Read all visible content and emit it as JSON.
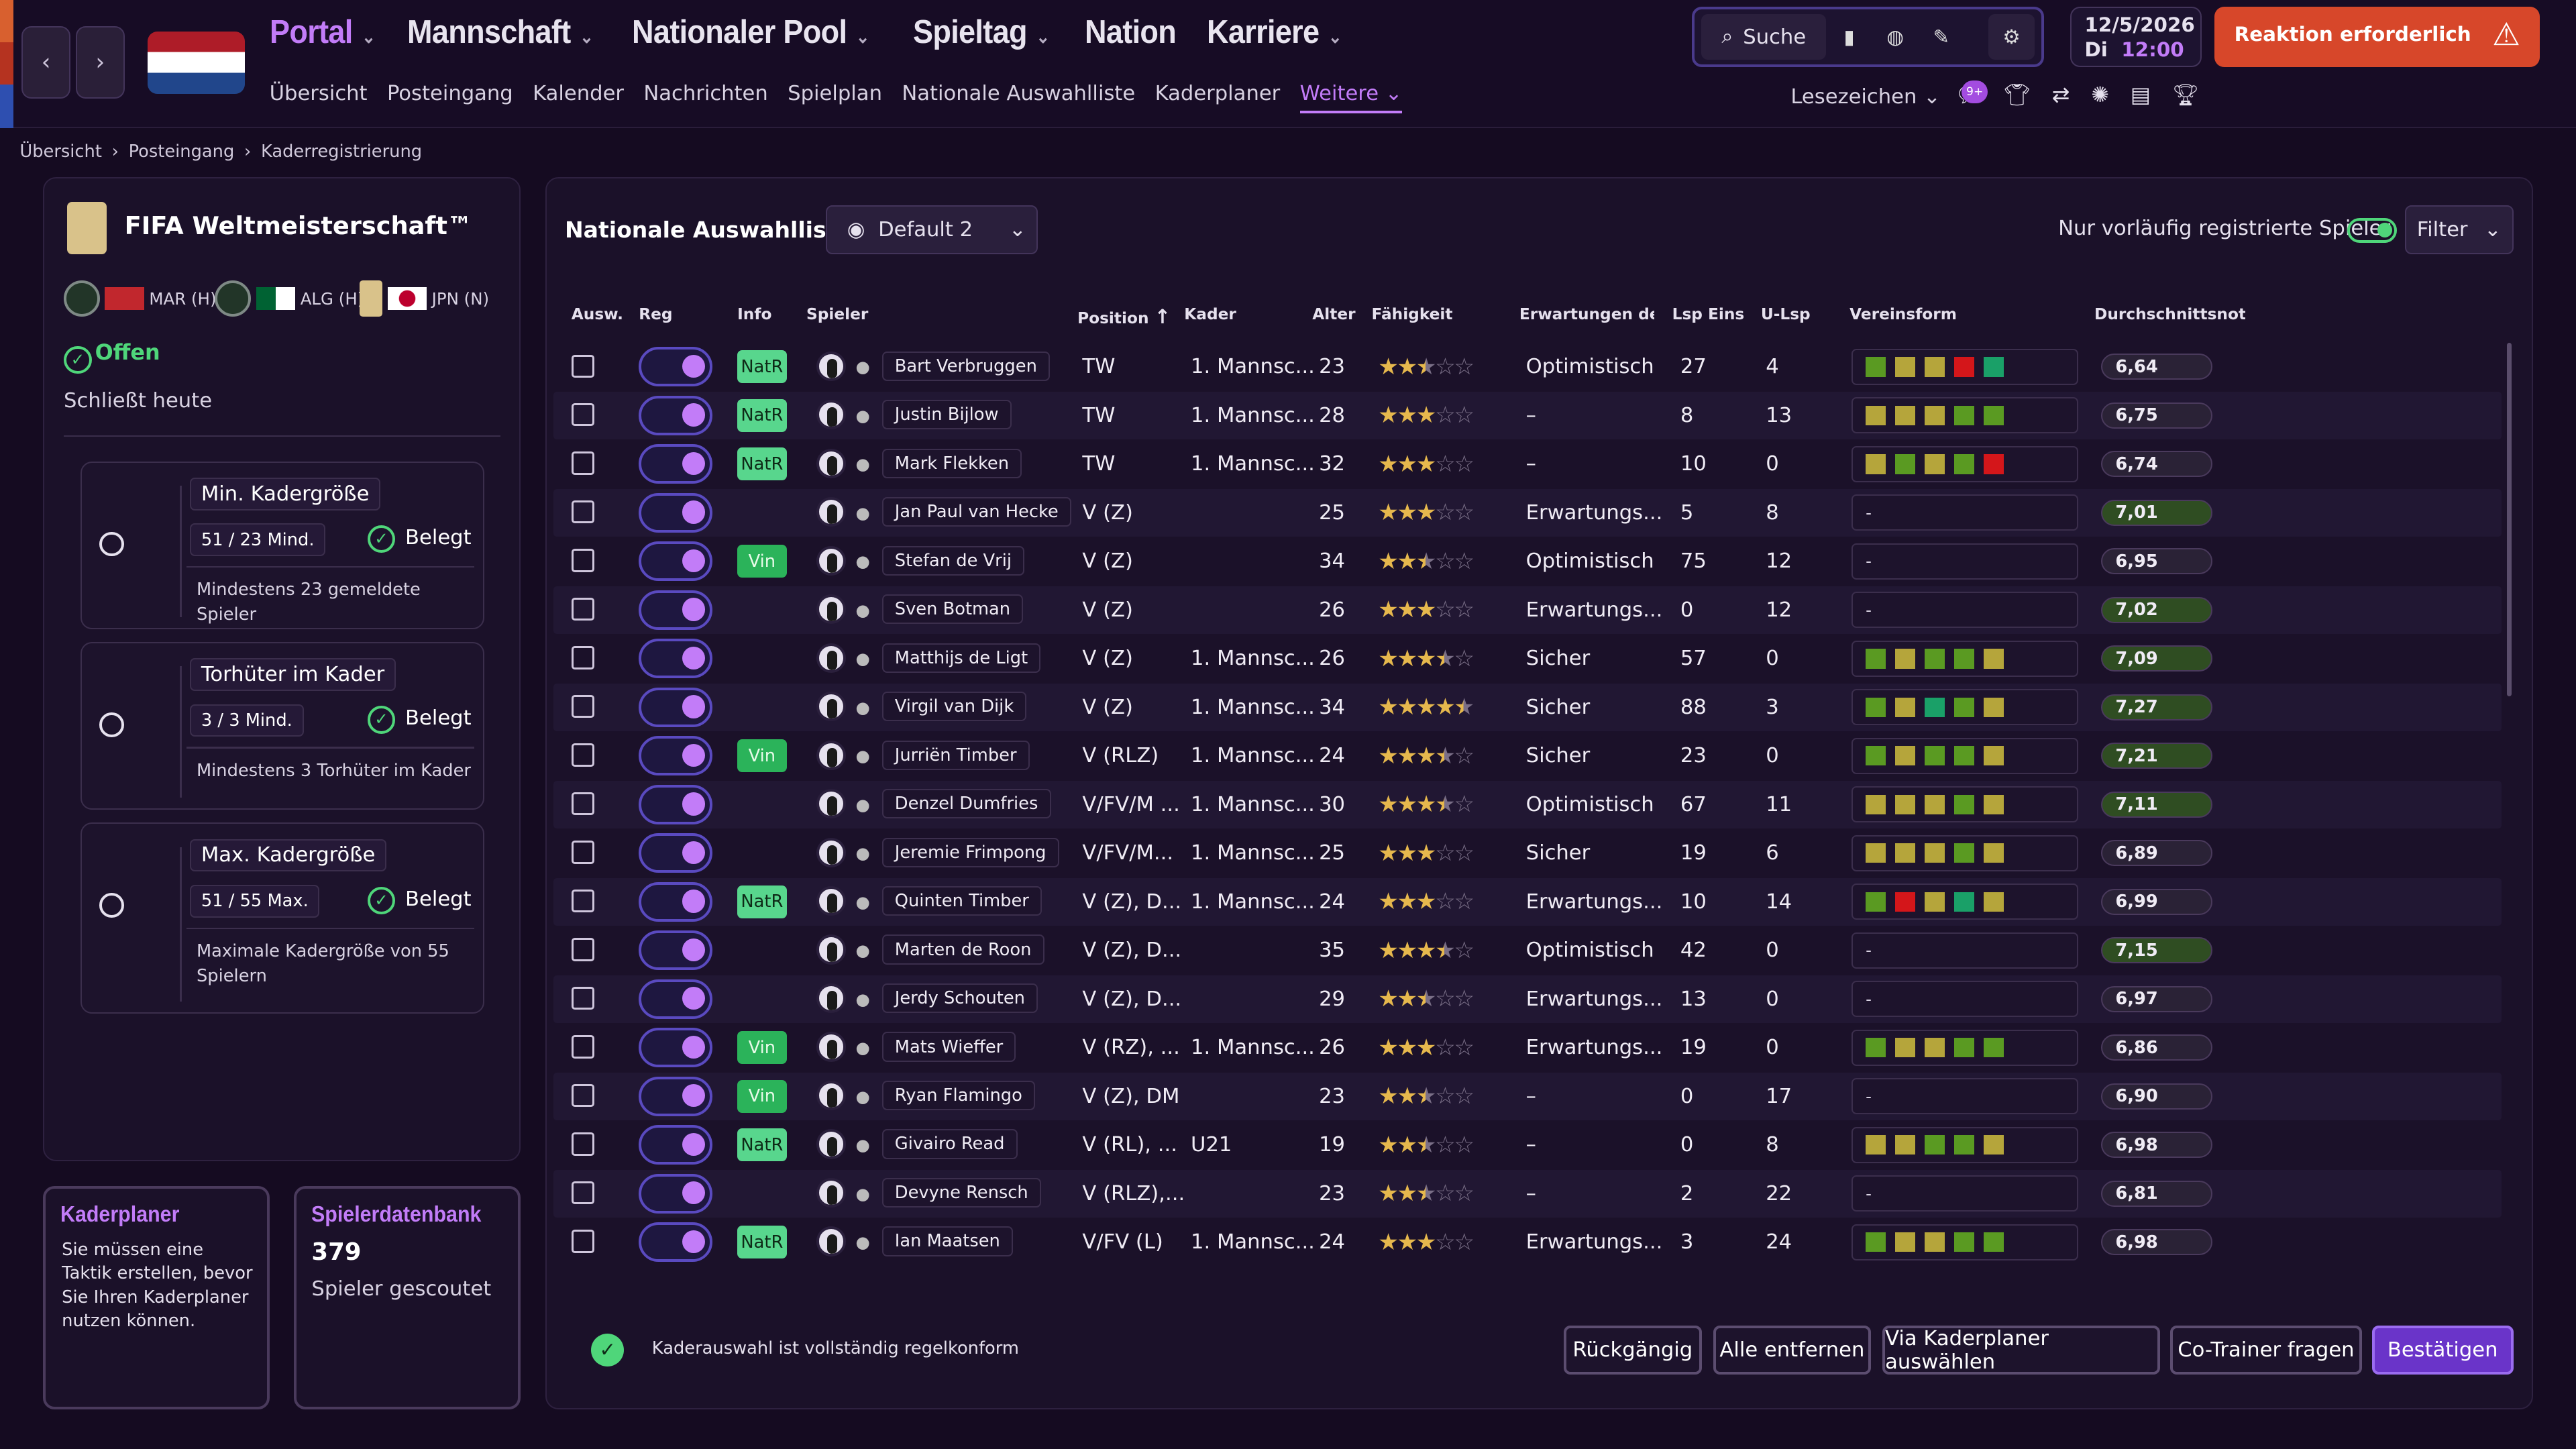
{
  "nav": {
    "back_icon": "chevron-left-icon",
    "forward_icon": "chevron-right-icon",
    "main_items": [
      {
        "label": "Portal",
        "has_menu": true
      },
      {
        "label": "Mannschaft",
        "has_menu": true
      },
      {
        "label": "Nationaler Pool",
        "has_menu": true
      },
      {
        "label": "Spieltag",
        "has_menu": true
      },
      {
        "label": "Nation",
        "has_menu": false
      },
      {
        "label": "Karriere",
        "has_menu": true
      }
    ],
    "sub_items": [
      "Übersicht",
      "Posteingang",
      "Kalender",
      "Nachrichten",
      "Spielplan",
      "Nationale Auswahlliste",
      "Kaderplaner",
      "Weitere"
    ],
    "active_sub": "Weitere",
    "search_label": "Suche",
    "date": "12/5/2026",
    "day": "Di",
    "time": "12:00",
    "alert_label": "Reaktion erforderlich",
    "bookmarks_label": "Lesezeichen",
    "notification_badge": "9+"
  },
  "breadcrumb": [
    "Übersicht",
    "Posteingang",
    "Kaderregistrierung"
  ],
  "competition": {
    "title": "FIFA Weltmeisterschaft™",
    "fixtures": [
      "MAR (H)",
      "ALG (H)",
      "JPN (N)"
    ],
    "status": "Offen",
    "closes": "Schließt heute"
  },
  "rules": [
    {
      "title": "Min. Kadergröße",
      "value": "51 / 23 Mind.",
      "state": "Belegt",
      "desc": "Mindestens 23 gemeldete Spieler"
    },
    {
      "title": "Torhüter im Kader",
      "value": "3 / 3 Mind.",
      "state": "Belegt",
      "desc": "Mindestens 3 Torhüter im Kader"
    },
    {
      "title": "Max. Kadergröße",
      "value": "51 / 55 Max.",
      "state": "Belegt",
      "desc": "Maximale Kadergröße von 55 Spielern"
    }
  ],
  "tiles": {
    "kaderplaner_title": "Kaderplaner",
    "kaderplaner_text": "Sie müssen eine Taktik erstellen, bevor Sie Ihren Kaderplaner nutzen können.",
    "db_title": "Spielerdatenbank",
    "db_count": "379",
    "db_sub": "Spieler gescoutet"
  },
  "list": {
    "title": "Nationale Auswahlliste",
    "view": "Default 2",
    "only_registered": "Nur vorläufig registrierte Spieler",
    "filter": "Filter",
    "columns": [
      "Ausw.",
      "Reg",
      "Info",
      "Spieler",
      "Position",
      "Kader",
      "Alter",
      "Fähigkeit",
      "Erwartungen des...",
      "Lsp Eins",
      "U-Lsp",
      "Vereinsform",
      "Durchschnittsnote..."
    ],
    "form_colors": {
      "g": "#5a9a22",
      "y": "#b5a53b",
      "r": "#d4161a",
      "t": "#1aa068"
    },
    "players": [
      {
        "info": "NatR",
        "name": "Bart Verbruggen",
        "pos": "TW",
        "kader": "1. Mannsc...",
        "age": "23",
        "stars": 2.5,
        "erw": "Optimistisch",
        "lsp": "27",
        "ulsp": "4",
        "form": "gyyrt",
        "rating": "6,64"
      },
      {
        "info": "NatR",
        "name": "Justin Bijlow",
        "pos": "TW",
        "kader": "1. Mannsc...",
        "age": "28",
        "stars": 3,
        "erw": "–",
        "lsp": "8",
        "ulsp": "13",
        "form": "yyygg",
        "rating": "6,75"
      },
      {
        "info": "NatR",
        "name": "Mark Flekken",
        "pos": "TW",
        "kader": "1. Mannsc...",
        "age": "32",
        "stars": 3,
        "erw": "–",
        "lsp": "10",
        "ulsp": "0",
        "form": "ygygr",
        "rating": "6,74"
      },
      {
        "info": "",
        "name": "Jan Paul van Hecke",
        "pos": "V (Z)",
        "kader": "",
        "age": "25",
        "stars": 3,
        "erw": "Erwartungs...",
        "lsp": "5",
        "ulsp": "8",
        "form": "",
        "rating": "7,01"
      },
      {
        "info": "Vin",
        "name": "Stefan de Vrij",
        "pos": "V (Z)",
        "kader": "",
        "age": "34",
        "stars": 2.5,
        "erw": "Optimistisch",
        "lsp": "75",
        "ulsp": "12",
        "form": "",
        "rating": "6,95"
      },
      {
        "info": "",
        "name": "Sven Botman",
        "pos": "V (Z)",
        "kader": "",
        "age": "26",
        "stars": 3,
        "erw": "Erwartungs...",
        "lsp": "0",
        "ulsp": "12",
        "form": "",
        "rating": "7,02"
      },
      {
        "info": "",
        "name": "Matthijs de Ligt",
        "pos": "V (Z)",
        "kader": "1. Mannsc...",
        "age": "26",
        "stars": 3.5,
        "erw": "Sicher",
        "lsp": "57",
        "ulsp": "0",
        "form": "gyggy",
        "rating": "7,09"
      },
      {
        "info": "",
        "name": "Virgil van Dijk",
        "pos": "V (Z)",
        "kader": "1. Mannsc...",
        "age": "34",
        "stars": 4.5,
        "erw": "Sicher",
        "lsp": "88",
        "ulsp": "3",
        "form": "gytgy",
        "rating": "7,27"
      },
      {
        "info": "Vin",
        "name": "Jurriën Timber",
        "pos": "V (RLZ)",
        "kader": "1. Mannsc...",
        "age": "24",
        "stars": 3.5,
        "erw": "Sicher",
        "lsp": "23",
        "ulsp": "0",
        "form": "gyggy",
        "rating": "7,21"
      },
      {
        "info": "",
        "name": "Denzel Dumfries",
        "pos": "V/FV/M ...",
        "kader": "1. Mannsc...",
        "age": "30",
        "stars": 3.5,
        "erw": "Optimistisch",
        "lsp": "67",
        "ulsp": "11",
        "form": "yyygy",
        "rating": "7,11"
      },
      {
        "info": "",
        "name": "Jeremie Frimpong",
        "pos": "V/FV/M...",
        "kader": "1. Mannsc...",
        "age": "25",
        "stars": 3,
        "erw": "Sicher",
        "lsp": "19",
        "ulsp": "6",
        "form": "yyygy",
        "rating": "6,89"
      },
      {
        "info": "NatR",
        "name": "Quinten Timber",
        "pos": "V (Z), D...",
        "kader": "1. Mannsc...",
        "age": "24",
        "stars": 3,
        "erw": "Erwartungs...",
        "lsp": "10",
        "ulsp": "14",
        "form": "gryty",
        "rating": "6,99"
      },
      {
        "info": "",
        "name": "Marten de Roon",
        "pos": "V (Z), D...",
        "kader": "",
        "age": "35",
        "stars": 3.5,
        "erw": "Optimistisch",
        "lsp": "42",
        "ulsp": "0",
        "form": "",
        "rating": "7,15"
      },
      {
        "info": "",
        "name": "Jerdy Schouten",
        "pos": "V (Z), D...",
        "kader": "",
        "age": "29",
        "stars": 2.5,
        "erw": "Erwartungs...",
        "lsp": "13",
        "ulsp": "0",
        "form": "",
        "rating": "6,97"
      },
      {
        "info": "Vin",
        "name": "Mats Wieffer",
        "pos": "V (RZ), ...",
        "kader": "1. Mannsc...",
        "age": "26",
        "stars": 3,
        "erw": "Erwartungs...",
        "lsp": "19",
        "ulsp": "0",
        "form": "gyygg",
        "rating": "6,86"
      },
      {
        "info": "Vin",
        "name": "Ryan Flamingo",
        "pos": "V (Z), DM",
        "kader": "",
        "age": "23",
        "stars": 2.5,
        "erw": "–",
        "lsp": "0",
        "ulsp": "17",
        "form": "",
        "rating": "6,90"
      },
      {
        "info": "NatR",
        "name": "Givairo Read",
        "pos": "V (RL), ...",
        "kader": "U21",
        "age": "19",
        "stars": 2.5,
        "erw": "–",
        "lsp": "0",
        "ulsp": "8",
        "form": "yyggy",
        "rating": "6,98"
      },
      {
        "info": "",
        "name": "Devyne Rensch",
        "pos": "V (RLZ),...",
        "kader": "",
        "age": "23",
        "stars": 2.5,
        "erw": "–",
        "lsp": "2",
        "ulsp": "22",
        "form": "",
        "rating": "6,81"
      },
      {
        "info": "NatR",
        "name": "Ian Maatsen",
        "pos": "V/FV (L)",
        "kader": "1. Mannsc...",
        "age": "24",
        "stars": 3,
        "erw": "Erwartungs...",
        "lsp": "3",
        "ulsp": "24",
        "form": "gyygg",
        "rating": "6,98"
      }
    ],
    "footer_msg": "Kaderauswahl ist vollständig regelkonform",
    "buttons": [
      "Rückgängig",
      "Alle entfernen",
      "Via Kaderplaner auswählen",
      "Co-Trainer fragen",
      "Bestätigen"
    ]
  }
}
